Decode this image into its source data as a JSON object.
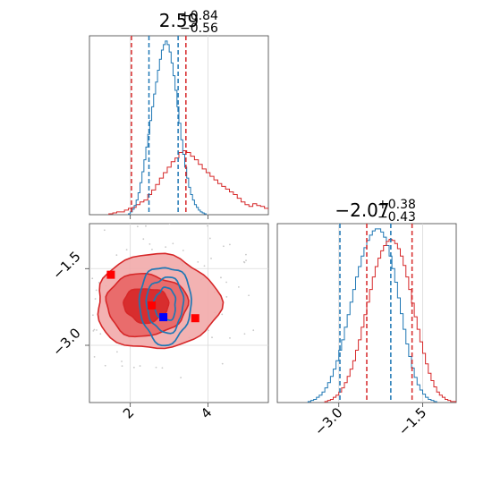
{
  "chart_data": [
    {
      "type": "histogram",
      "panel": "top-left",
      "title_value": "2.59",
      "title_plus": "+0.84",
      "title_minus": "−0.56",
      "xlim": [
        0.95,
        5.55
      ],
      "grid": true,
      "vlines": [
        {
          "x": 2.03,
          "color": "#d62728"
        },
        {
          "x": 2.48,
          "color": "#1f77b4"
        },
        {
          "x": 3.23,
          "color": "#1f77b4"
        },
        {
          "x": 3.43,
          "color": "#d62728"
        }
      ],
      "series": [
        {
          "color": "#d62728",
          "x_start": 1.45,
          "bin_width": 0.1,
          "values": [
            1,
            2,
            3,
            3,
            5,
            7,
            8,
            11,
            14,
            16,
            22,
            27,
            33,
            40,
            46,
            52,
            58,
            62,
            68,
            70,
            68,
            64,
            60,
            55,
            50,
            46,
            42,
            38,
            34,
            31,
            28,
            25,
            22,
            18,
            14,
            11,
            9,
            12,
            10,
            9,
            7,
            6,
            5,
            4,
            3,
            2,
            1,
            1
          ]
        },
        {
          "color": "#1f77b4",
          "x_start": 1.95,
          "bin_width": 0.05,
          "values": [
            1,
            3,
            6,
            10,
            16,
            24,
            35,
            47,
            60,
            74,
            88,
            103,
            118,
            132,
            145,
            158,
            170,
            180,
            186,
            190,
            186,
            178,
            166,
            152,
            136,
            118,
            100,
            82,
            66,
            52,
            40,
            30,
            22,
            16,
            11,
            8,
            5,
            3,
            2,
            1
          ]
        }
      ]
    },
    {
      "type": "histogram",
      "panel": "bottom-right",
      "title_value": "−2.07",
      "title_plus": "+0.38",
      "title_minus": "−0.43",
      "xlim": [
        -4.1,
        -0.9
      ],
      "grid": true,
      "xticks": [
        "−3.0",
        "−1.5"
      ],
      "vlines": [
        {
          "x": -2.98,
          "color": "#1f77b4"
        },
        {
          "x": -2.5,
          "color": "#d62728"
        },
        {
          "x": -2.07,
          "color": "#1f77b4"
        },
        {
          "x": -1.69,
          "color": "#d62728"
        }
      ],
      "series": [
        {
          "color": "#1f77b4",
          "x_start": -3.55,
          "bin_width": 0.05,
          "values": [
            1,
            2,
            3,
            5,
            7,
            10,
            14,
            19,
            25,
            32,
            40,
            50,
            60,
            72,
            84,
            96,
            108,
            120,
            130,
            140,
            148,
            155,
            160,
            164,
            166,
            166,
            163,
            158,
            150,
            140,
            128,
            115,
            100,
            85,
            70,
            56,
            44,
            33,
            24,
            17,
            12,
            8,
            5,
            3,
            2,
            1
          ]
        },
        {
          "color": "#d62728",
          "x_start": -3.25,
          "bin_width": 0.05,
          "values": [
            1,
            2,
            3,
            5,
            7,
            10,
            14,
            19,
            25,
            32,
            40,
            50,
            60,
            72,
            84,
            96,
            108,
            120,
            130,
            138,
            145,
            150,
            154,
            156,
            155,
            152,
            147,
            140,
            131,
            120,
            108,
            95,
            82,
            70,
            58,
            47,
            37,
            28,
            21,
            15,
            10,
            7,
            5,
            3,
            2,
            1,
            1
          ]
        }
      ]
    },
    {
      "type": "contour",
      "panel": "bottom-left",
      "xlim": [
        0.95,
        5.55
      ],
      "ylim": [
        -4.12,
        -0.62
      ],
      "xticks": [
        "2",
        "4"
      ],
      "yticks": [
        "−1.5",
        "−3.0"
      ],
      "grid": true,
      "series": [
        {
          "color": "#d62728",
          "center": [
            2.59,
            -2.07
          ],
          "sigma": [
            0.72,
            0.42
          ],
          "levels": [
            "outer",
            "middle",
            "inner"
          ]
        },
        {
          "color": "#1f77b4",
          "center": [
            2.9,
            -2.2
          ],
          "sigma": [
            0.35,
            0.4
          ],
          "levels": [
            "outer",
            "middle",
            "inner"
          ]
        }
      ],
      "markers": [
        {
          "x": 1.5,
          "y": -1.62,
          "color": "#ff0000"
        },
        {
          "x": 2.55,
          "y": -2.22,
          "color": "#ff0000"
        },
        {
          "x": 3.67,
          "y": -2.47,
          "color": "#ff0000"
        },
        {
          "x": 2.85,
          "y": -2.45,
          "color": "#0000ff"
        }
      ]
    }
  ]
}
